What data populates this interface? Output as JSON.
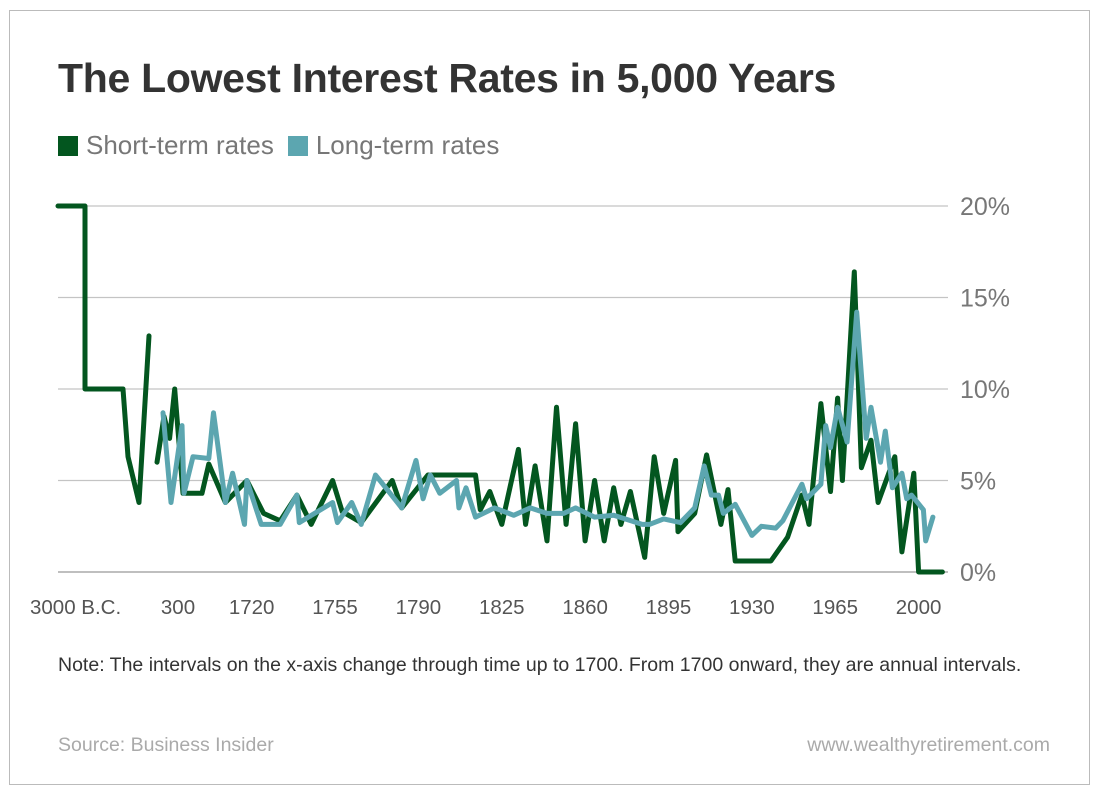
{
  "chart_data": {
    "type": "line",
    "title": "The Lowest Interest Rates in 5,000 Years",
    "xlabel": "",
    "ylabel": "",
    "ylim": [
      0,
      20
    ],
    "yticks": [
      0,
      5,
      10,
      15,
      20
    ],
    "ytick_labels": [
      "0%",
      "5%",
      "10%",
      "15%",
      "20%"
    ],
    "xticks": [
      {
        "x": -3000,
        "label": "3000 B.C."
      },
      {
        "x": 300,
        "label": "300"
      },
      {
        "x": 1720,
        "label": "1720"
      },
      {
        "x": 1755,
        "label": "1755"
      },
      {
        "x": 1790,
        "label": "1790"
      },
      {
        "x": 1825,
        "label": "1825"
      },
      {
        "x": 1860,
        "label": "1860"
      },
      {
        "x": 1895,
        "label": "1895"
      },
      {
        "x": 1930,
        "label": "1930"
      },
      {
        "x": 1965,
        "label": "1965"
      },
      {
        "x": 2000,
        "label": "2000"
      }
    ],
    "grid": "horizontal",
    "legend": "top-left",
    "series": [
      {
        "name": "Short-term rates",
        "color": "#03561f",
        "points": [
          [
            -3000,
            20
          ],
          [
            -2258,
            20
          ],
          [
            -2258,
            10
          ],
          [
            -1213,
            10
          ],
          [
            -1075,
            6.3
          ],
          [
            -773,
            3.8
          ],
          [
            -498,
            12.9
          ],
          null,
          [
            -278,
            6.0
          ],
          [
            -85,
            8.5
          ],
          [
            70,
            7.3
          ],
          [
            208,
            10.0
          ],
          [
            569,
            4.3
          ],
          [
            1592,
            4.3
          ],
          [
            1702,
            5.9
          ],
          [
            1709,
            3.8
          ],
          [
            1718,
            5.0
          ],
          [
            1725,
            3.2
          ],
          [
            1732,
            2.8
          ],
          [
            1739,
            4.2
          ],
          [
            1745,
            2.6
          ],
          [
            1754,
            5.0
          ],
          [
            1758,
            3.3
          ],
          [
            1766,
            2.7
          ],
          [
            1779,
            5.0
          ],
          [
            1783,
            3.5
          ],
          [
            1794,
            5.3
          ],
          [
            1814,
            5.3
          ],
          [
            1816,
            3.4
          ],
          [
            1820,
            4.4
          ],
          [
            1825,
            2.6
          ],
          [
            1832,
            6.7
          ],
          [
            1835,
            2.6
          ],
          [
            1839,
            5.8
          ],
          [
            1844,
            1.7
          ],
          [
            1848,
            9.0
          ],
          [
            1852,
            2.6
          ],
          [
            1856,
            8.1
          ],
          [
            1860,
            1.7
          ],
          [
            1864,
            5.0
          ],
          [
            1868,
            1.7
          ],
          [
            1872,
            4.6
          ],
          [
            1875,
            2.6
          ],
          [
            1879,
            4.4
          ],
          [
            1885,
            0.8
          ],
          [
            1889,
            6.3
          ],
          [
            1893,
            3.2
          ],
          [
            1898,
            6.1
          ],
          [
            1899,
            2.2
          ],
          [
            1906,
            3.2
          ],
          [
            1911,
            6.4
          ],
          [
            1917,
            2.6
          ],
          [
            1920,
            4.5
          ],
          [
            1923,
            0.6
          ],
          [
            1938,
            0.6
          ],
          [
            1945,
            1.9
          ],
          [
            1951,
            4.2
          ],
          [
            1954,
            2.6
          ],
          [
            1959,
            9.2
          ],
          [
            1963,
            4.4
          ],
          [
            1966,
            9.5
          ],
          [
            1968,
            5.0
          ],
          [
            1973,
            16.4
          ],
          [
            1976,
            5.7
          ],
          [
            1980,
            7.2
          ],
          [
            1983,
            3.8
          ],
          [
            1990,
            6.3
          ],
          [
            1993,
            1.1
          ],
          [
            1998,
            5.4
          ],
          [
            2000,
            0
          ],
          [
            2010,
            0
          ]
        ]
      },
      {
        "name": "Long-term rates",
        "color": "#5ca6b0",
        "points": [
          [
            -113,
            8.7
          ],
          [
            107,
            3.8
          ],
          [
            515,
            8.0
          ],
          [
            623,
            4.3
          ],
          [
            1108,
            6.3
          ],
          [
            1702,
            6.2
          ],
          [
            1704,
            8.7
          ],
          [
            1709,
            3.8
          ],
          [
            1712,
            5.4
          ],
          [
            1717,
            2.6
          ],
          [
            1718,
            5.0
          ],
          [
            1724,
            2.6
          ],
          [
            1732,
            2.6
          ],
          [
            1739,
            4.2
          ],
          [
            1740,
            2.7
          ],
          [
            1754,
            3.8
          ],
          [
            1756,
            2.7
          ],
          [
            1762,
            3.8
          ],
          [
            1766,
            2.6
          ],
          [
            1772,
            5.3
          ],
          [
            1783,
            3.5
          ],
          [
            1789,
            6.1
          ],
          [
            1792,
            4.0
          ],
          [
            1795,
            5.3
          ],
          [
            1799,
            4.3
          ],
          [
            1806,
            5.0
          ],
          [
            1807,
            3.5
          ],
          [
            1810,
            4.6
          ],
          [
            1814,
            3.0
          ],
          [
            1822,
            3.5
          ],
          [
            1830,
            3.1
          ],
          [
            1837,
            3.5
          ],
          [
            1844,
            3.2
          ],
          [
            1851,
            3.2
          ],
          [
            1856,
            3.5
          ],
          [
            1864,
            3.0
          ],
          [
            1872,
            3.1
          ],
          [
            1884,
            2.6
          ],
          [
            1887,
            2.6
          ],
          [
            1893,
            2.9
          ],
          [
            1900,
            2.7
          ],
          [
            1906,
            3.5
          ],
          [
            1910,
            5.8
          ],
          [
            1913,
            4.2
          ],
          [
            1916,
            4.2
          ],
          [
            1918,
            3.2
          ],
          [
            1923,
            3.7
          ],
          [
            1930,
            2.0
          ],
          [
            1934,
            2.5
          ],
          [
            1940,
            2.4
          ],
          [
            1943,
            2.8
          ],
          [
            1951,
            4.8
          ],
          [
            1953,
            4.0
          ],
          [
            1959,
            4.8
          ],
          [
            1961,
            8.0
          ],
          [
            1963,
            6.8
          ],
          [
            1966,
            9.0
          ],
          [
            1970,
            7.1
          ],
          [
            1974,
            14.2
          ],
          [
            1978,
            7.3
          ],
          [
            1980,
            9.0
          ],
          [
            1984,
            6.0
          ],
          [
            1986,
            7.7
          ],
          [
            1989,
            4.6
          ],
          [
            1993,
            5.4
          ],
          [
            1995,
            4.0
          ],
          [
            1997,
            4.2
          ],
          [
            2002,
            3.4
          ],
          [
            2003,
            1.7
          ],
          [
            2006,
            3.0
          ]
        ]
      }
    ]
  },
  "note": "Note: The intervals on the x-axis change through time up to 1700. From 1700 onward, they are annual intervals.",
  "source": "Source: Business Insider",
  "website": "www.wealthyretirement.com"
}
